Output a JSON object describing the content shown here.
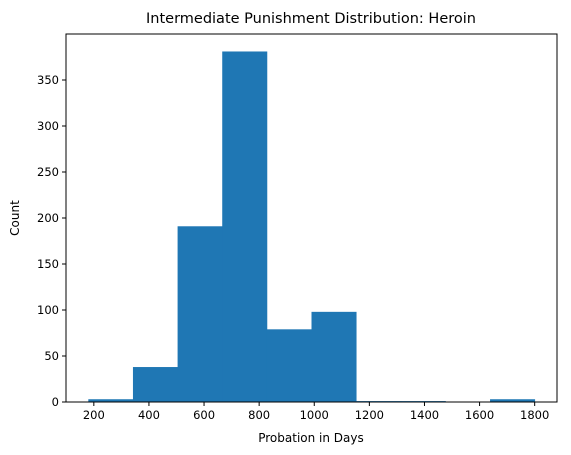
{
  "chart_data": {
    "type": "bar",
    "subtype": "histogram",
    "title": "Intermediate Punishment Distribution: Heroin",
    "xlabel": "Probation in Days",
    "ylabel": "Count",
    "bin_edges": [
      180,
      342,
      504,
      666,
      828,
      990,
      1152,
      1314,
      1476,
      1638,
      1800
    ],
    "values": [
      3,
      38,
      191,
      381,
      79,
      98,
      1,
      1,
      0,
      3
    ],
    "xlim": [
      99,
      1881
    ],
    "ylim": [
      0,
      400
    ],
    "x_ticks": [
      200,
      400,
      600,
      800,
      1000,
      1200,
      1400,
      1600,
      1800
    ],
    "y_ticks": [
      0,
      50,
      100,
      150,
      200,
      250,
      300,
      350
    ],
    "grid": false,
    "bar_color": "#1f77b4"
  }
}
